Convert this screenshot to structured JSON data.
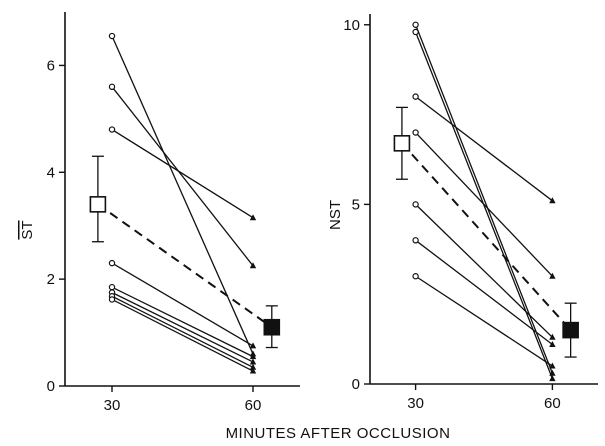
{
  "xlabel": "MINUTES AFTER OCCLUSION",
  "chart_data": [
    {
      "type": "line",
      "ylabel": "ST",
      "ylabel_overline": true,
      "x_ticks": [
        30,
        60
      ],
      "x_tick_labels": [
        "30",
        "60"
      ],
      "y_ticks": [
        0,
        2,
        4,
        6
      ],
      "y_tick_labels": [
        "0",
        "2",
        "4",
        "6"
      ],
      "xlim": [
        20,
        70
      ],
      "ylim": [
        0,
        7
      ],
      "individual_pairs": [
        {
          "y30": 6.55,
          "y60": 0.6
        },
        {
          "y30": 5.6,
          "y60": 2.25
        },
        {
          "y30": 4.8,
          "y60": 3.15
        },
        {
          "y30": 2.3,
          "y60": 0.75
        },
        {
          "y30": 1.85,
          "y60": 0.55
        },
        {
          "y30": 1.75,
          "y60": 0.45
        },
        {
          "y30": 1.68,
          "y60": 0.35
        },
        {
          "y30": 1.62,
          "y60": 0.28
        }
      ],
      "mean_30": {
        "x": 27,
        "y": 3.4,
        "err_low": 2.7,
        "err_high": 4.3
      },
      "mean_60": {
        "x": 64,
        "y": 1.1,
        "err_low": 0.72,
        "err_high": 1.5
      }
    },
    {
      "type": "line",
      "ylabel": "NST",
      "ylabel_overline": false,
      "x_ticks": [
        30,
        60
      ],
      "x_tick_labels": [
        "30",
        "60"
      ],
      "y_ticks": [
        0,
        5,
        10
      ],
      "y_tick_labels": [
        "0",
        "5",
        "10"
      ],
      "xlim": [
        20,
        70
      ],
      "ylim": [
        0,
        10.3
      ],
      "individual_pairs": [
        {
          "y30": 10.0,
          "y60": 0.3
        },
        {
          "y30": 9.8,
          "y60": 0.15
        },
        {
          "y30": 8.0,
          "y60": 5.1
        },
        {
          "y30": 7.0,
          "y60": 3.0
        },
        {
          "y30": 5.0,
          "y60": 1.3
        },
        {
          "y30": 4.0,
          "y60": 1.1
        },
        {
          "y30": 3.0,
          "y60": 0.5
        }
      ],
      "mean_30": {
        "x": 27,
        "y": 6.7,
        "err_low": 5.7,
        "err_high": 7.7
      },
      "mean_60": {
        "x": 64,
        "y": 1.5,
        "err_low": 0.75,
        "err_high": 2.25
      }
    }
  ],
  "colors": {
    "ink": "#111111",
    "background": "#ffffff"
  }
}
